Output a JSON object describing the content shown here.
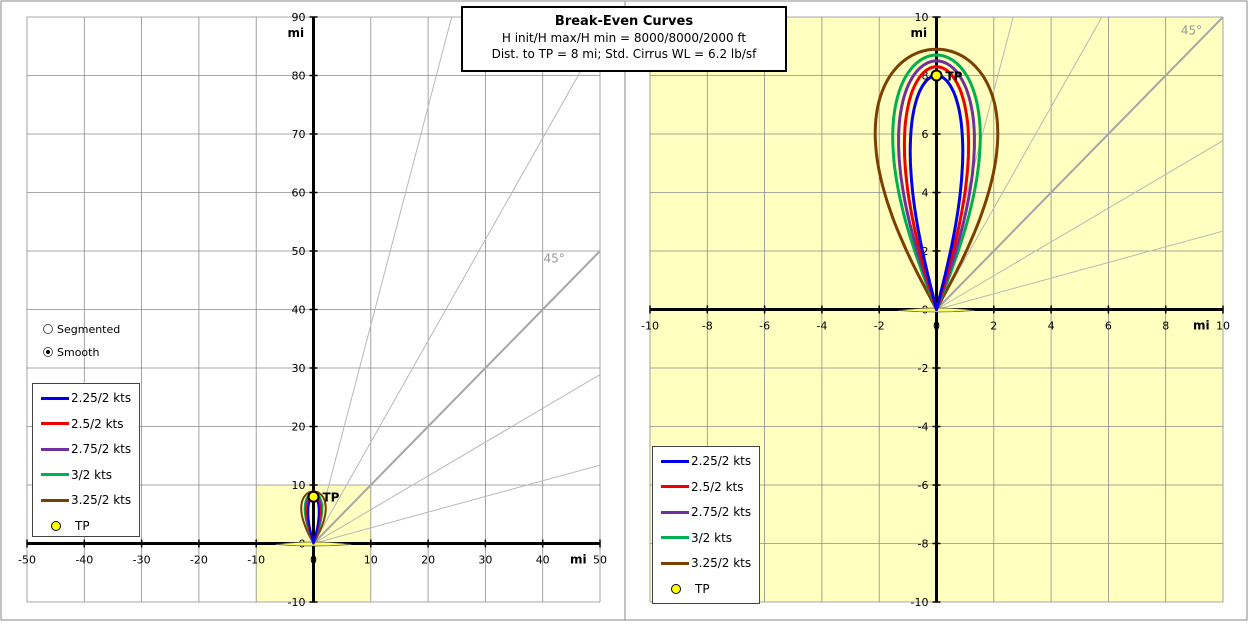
{
  "title": {
    "line1": "Break-Even Curves",
    "line2": "H init/H max/H min = 8000/8000/2000 ft",
    "line3": "Dist. to TP = 8 mi; Std. Cirrus WL = 6.2 lb/sf"
  },
  "options": {
    "segmented_label": "Segmented",
    "smooth_label": "Smooth",
    "selected": "Smooth"
  },
  "colors": {
    "plot_bg_right": "#ffffc0",
    "zoom_box": "#ffffc0"
  },
  "chart_data": [
    {
      "type": "line",
      "panel": "left",
      "ref_label": "45°",
      "xlim": [
        -50,
        50
      ],
      "ylim": [
        -10,
        90
      ],
      "x_ticks": [
        "-50",
        "-40",
        "-30",
        "-20",
        "-10",
        "0",
        "10",
        "20",
        "30",
        "40",
        "50"
      ],
      "y_ticks": [
        "-10",
        "0",
        "10",
        "20",
        "30",
        "40",
        "50",
        "60",
        "70",
        "80",
        "90"
      ],
      "x_unit": "mi",
      "y_unit": "mi",
      "zoom_region": {
        "x": [
          -10,
          10
        ],
        "y": [
          -10,
          10
        ]
      },
      "tp_point": {
        "x": 0,
        "y": 8,
        "label": "TP"
      },
      "series": [
        {
          "name": "2.25/2 kts",
          "color": "#0000ee",
          "peak_y": 8.0,
          "half_width": 0.9
        },
        {
          "name": "2.5/2 kts",
          "color": "#ee0000",
          "peak_y": 8.3,
          "half_width": 1.1
        },
        {
          "name": "2.75/2 kts",
          "color": "#7030a0",
          "peak_y": 8.5,
          "half_width": 1.3
        },
        {
          "name": "3/2 kts",
          "color": "#00b050",
          "peak_y": 8.7,
          "half_width": 1.5
        },
        {
          "name": "3.25/2 kts",
          "color": "#7b3f00",
          "peak_y": 8.9,
          "half_width": 2.1
        }
      ],
      "legend": [
        "2.25/2 kts",
        "2.5/2 kts",
        "2.75/2 kts",
        "3/2 kts",
        "3.25/2 kts",
        "TP"
      ]
    },
    {
      "type": "line",
      "panel": "right",
      "ref_label": "45°",
      "xlim": [
        -10,
        10
      ],
      "ylim": [
        -10,
        10
      ],
      "x_ticks": [
        "-10",
        "-8",
        "-6",
        "-4",
        "-2",
        "0",
        "2",
        "4",
        "6",
        "8",
        "10"
      ],
      "y_ticks": [
        "-10",
        "-8",
        "-6",
        "-4",
        "-2",
        "0",
        "2",
        "4",
        "6",
        "8",
        "10"
      ],
      "x_unit": "mi",
      "y_unit": "mi",
      "tp_point": {
        "x": 0,
        "y": 8,
        "label": "TP"
      },
      "series": [
        {
          "name": "2.25/2 kts",
          "color": "#0000ee",
          "peak_y": 8.0,
          "half_width": 0.9
        },
        {
          "name": "2.5/2 kts",
          "color": "#ee0000",
          "peak_y": 8.3,
          "half_width": 1.1
        },
        {
          "name": "2.75/2 kts",
          "color": "#7030a0",
          "peak_y": 8.5,
          "half_width": 1.3
        },
        {
          "name": "3/2 kts",
          "color": "#00b050",
          "peak_y": 8.7,
          "half_width": 1.5
        },
        {
          "name": "3.25/2 kts",
          "color": "#7b3f00",
          "peak_y": 8.9,
          "half_width": 2.1
        }
      ],
      "legend": [
        "2.25/2 kts",
        "2.5/2 kts",
        "2.75/2 kts",
        "3/2 kts",
        "3.25/2 kts",
        "TP"
      ]
    }
  ]
}
